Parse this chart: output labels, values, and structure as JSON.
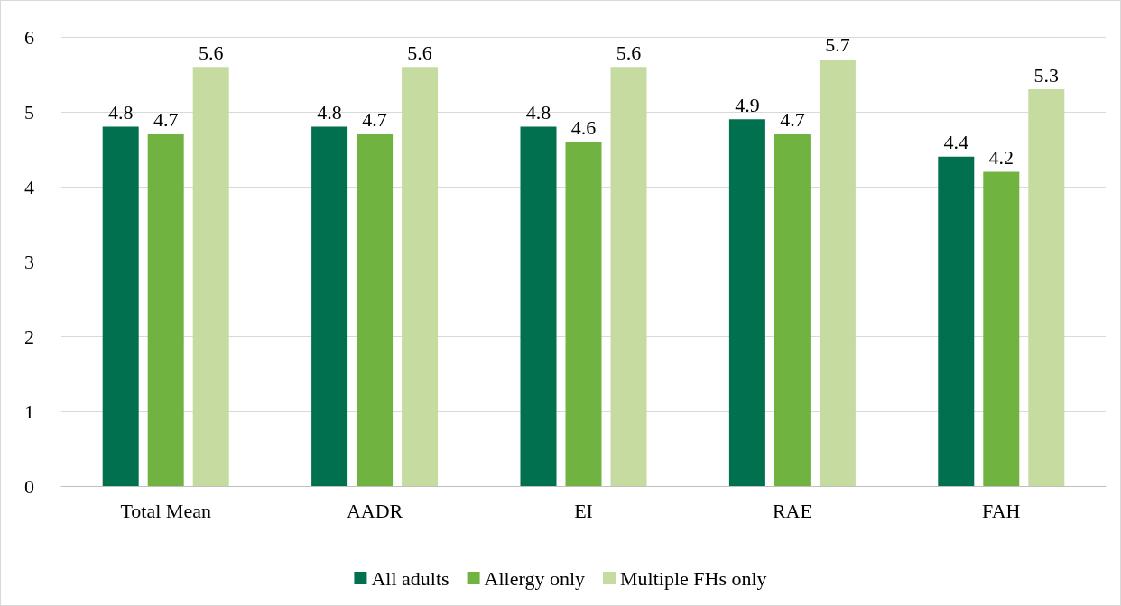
{
  "chart_data": {
    "type": "bar",
    "categories": [
      "Total Mean",
      "AADR",
      "EI",
      "RAE",
      "FAH"
    ],
    "series": [
      {
        "name": "All adults",
        "color": "#00704f",
        "values": [
          4.8,
          4.8,
          4.8,
          4.9,
          4.4
        ]
      },
      {
        "name": "Allergy only",
        "color": "#70b340",
        "values": [
          4.7,
          4.7,
          4.6,
          4.7,
          4.2
        ]
      },
      {
        "name": "Multiple FHs only",
        "color": "#c5dba0",
        "values": [
          5.6,
          5.6,
          5.6,
          5.7,
          5.3
        ]
      }
    ],
    "ylim": [
      0,
      6
    ],
    "yticks": [
      0,
      1,
      2,
      3,
      4,
      5,
      6
    ],
    "grid": "y",
    "legend": "bottom",
    "data_labels": true
  }
}
